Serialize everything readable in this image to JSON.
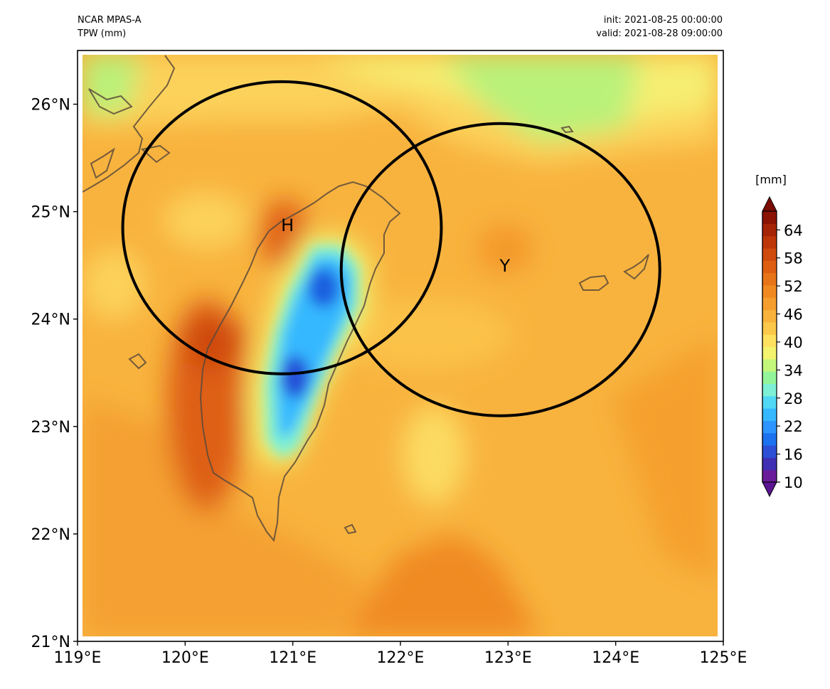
{
  "header": {
    "model": "NCAR MPAS-A",
    "field": "TPW (mm)",
    "init": "init: 2021-08-25 00:00:00",
    "valid": "valid: 2021-08-28 09:00:00"
  },
  "axes": {
    "x_ticks": [
      "119°E",
      "120°E",
      "121°E",
      "122°E",
      "123°E",
      "124°E",
      "125°E"
    ],
    "y_ticks": [
      "21°N",
      "22°N",
      "23°N",
      "24°N",
      "25°N",
      "26°N"
    ]
  },
  "map_extent": {
    "lon": [
      119,
      125
    ],
    "lat": [
      21,
      26.5
    ]
  },
  "markers": [
    {
      "label": "H",
      "lon": 120.95,
      "lat": 24.88
    },
    {
      "label": "Y",
      "lon": 122.97,
      "lat": 24.5
    }
  ],
  "circles": [
    {
      "center_lon": 120.9,
      "center_lat": 24.85,
      "radius_deg_lon": 1.48,
      "radius_deg_lat": 1.36
    },
    {
      "center_lon": 122.93,
      "center_lat": 24.46,
      "radius_deg_lon": 1.48,
      "radius_deg_lat": 1.36
    }
  ],
  "colorbar": {
    "unit": "[mm]",
    "ticks": [
      "64",
      "58",
      "52",
      "46",
      "40",
      "34",
      "28",
      "22",
      "16",
      "10"
    ],
    "min": 10,
    "max": 68,
    "extend": "both",
    "colors": [
      "#6a1b9a",
      "#3f2fb3",
      "#2c4fd6",
      "#1d72f0",
      "#2d95ff",
      "#35b8ff",
      "#50d8f5",
      "#7df0d5",
      "#93f59a",
      "#c3f77a",
      "#f3f36e",
      "#ffe15f",
      "#fcc84a",
      "#f9b23b",
      "#f59e2d",
      "#f08a20",
      "#e87418",
      "#de5f12",
      "#cf4a0d",
      "#bd360a",
      "#a52306",
      "#8b1304"
    ],
    "over_color": "#7a0c03",
    "under_color": "#5a1491"
  },
  "colors": {
    "frame": "#000000",
    "coast": "#5c4a3a",
    "circle": "#000000"
  }
}
